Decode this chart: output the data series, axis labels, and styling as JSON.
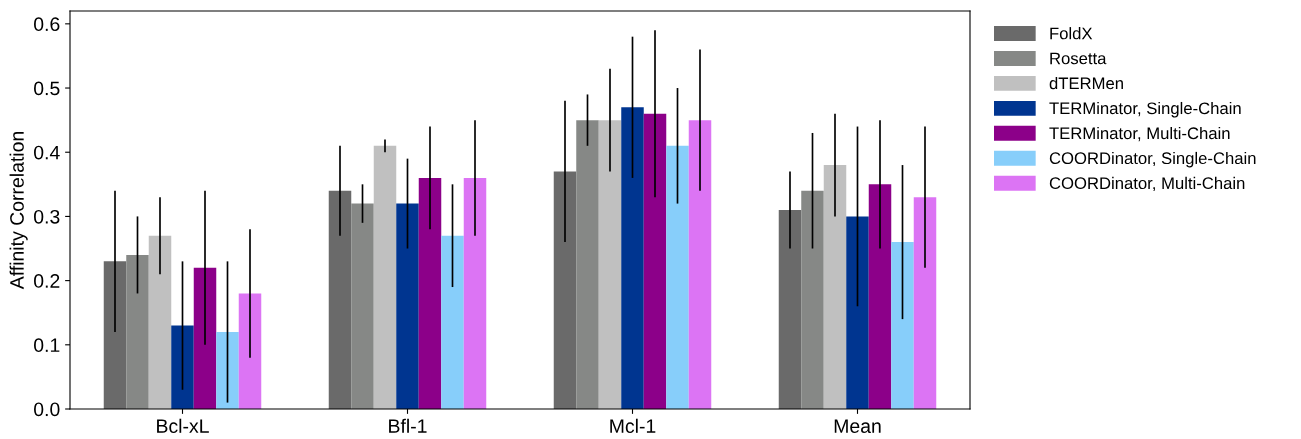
{
  "chart_data": {
    "type": "bar",
    "ylabel": "Affinity Correlation",
    "categories": [
      "Bcl-xL",
      "Bfl-1",
      "Mcl-1",
      "Mean"
    ],
    "series": [
      {
        "name": "FoldX",
        "color": "#6a6a6a",
        "values": [
          0.23,
          0.34,
          0.37,
          0.31
        ],
        "errors": [
          [
            0.12,
            0.34
          ],
          [
            0.27,
            0.41
          ],
          [
            0.26,
            0.48
          ],
          [
            0.25,
            0.37
          ]
        ]
      },
      {
        "name": "Rosetta",
        "color": "#868886",
        "values": [
          0.24,
          0.32,
          0.45,
          0.34
        ],
        "errors": [
          [
            0.18,
            0.3
          ],
          [
            0.29,
            0.35
          ],
          [
            0.41,
            0.49
          ],
          [
            0.25,
            0.43
          ]
        ]
      },
      {
        "name": "dTERMen",
        "color": "#c0c0c0",
        "values": [
          0.27,
          0.41,
          0.45,
          0.38
        ],
        "errors": [
          [
            0.21,
            0.33
          ],
          [
            0.4,
            0.42
          ],
          [
            0.37,
            0.53
          ],
          [
            0.3,
            0.46
          ]
        ]
      },
      {
        "name": "TERMinator, Single-Chain",
        "color": "#003590",
        "values": [
          0.13,
          0.32,
          0.47,
          0.3
        ],
        "errors": [
          [
            0.03,
            0.23
          ],
          [
            0.25,
            0.39
          ],
          [
            0.36,
            0.58
          ],
          [
            0.16,
            0.44
          ]
        ]
      },
      {
        "name": "TERMinator, Multi-Chain",
        "color": "#8c0089",
        "values": [
          0.22,
          0.36,
          0.46,
          0.35
        ],
        "errors": [
          [
            0.1,
            0.34
          ],
          [
            0.28,
            0.44
          ],
          [
            0.33,
            0.59
          ],
          [
            0.25,
            0.45
          ]
        ]
      },
      {
        "name": "COORDinator, Single-Chain",
        "color": "#87cefa",
        "values": [
          0.12,
          0.27,
          0.41,
          0.26
        ],
        "errors": [
          [
            0.01,
            0.23
          ],
          [
            0.19,
            0.35
          ],
          [
            0.32,
            0.5
          ],
          [
            0.14,
            0.38
          ]
        ]
      },
      {
        "name": "COORDinator, Multi-Chain",
        "color": "#dc74f4",
        "values": [
          0.18,
          0.36,
          0.45,
          0.33
        ],
        "errors": [
          [
            0.08,
            0.28
          ],
          [
            0.27,
            0.45
          ],
          [
            0.34,
            0.56
          ],
          [
            0.22,
            0.44
          ]
        ]
      }
    ],
    "ylim": [
      0,
      0.62
    ],
    "yticks": [
      {
        "value": 0,
        "label": "0.0"
      },
      0.1,
      0.2,
      0.3,
      0.4,
      0.5,
      0.6
    ],
    "grid": false,
    "legend": "top right"
  }
}
